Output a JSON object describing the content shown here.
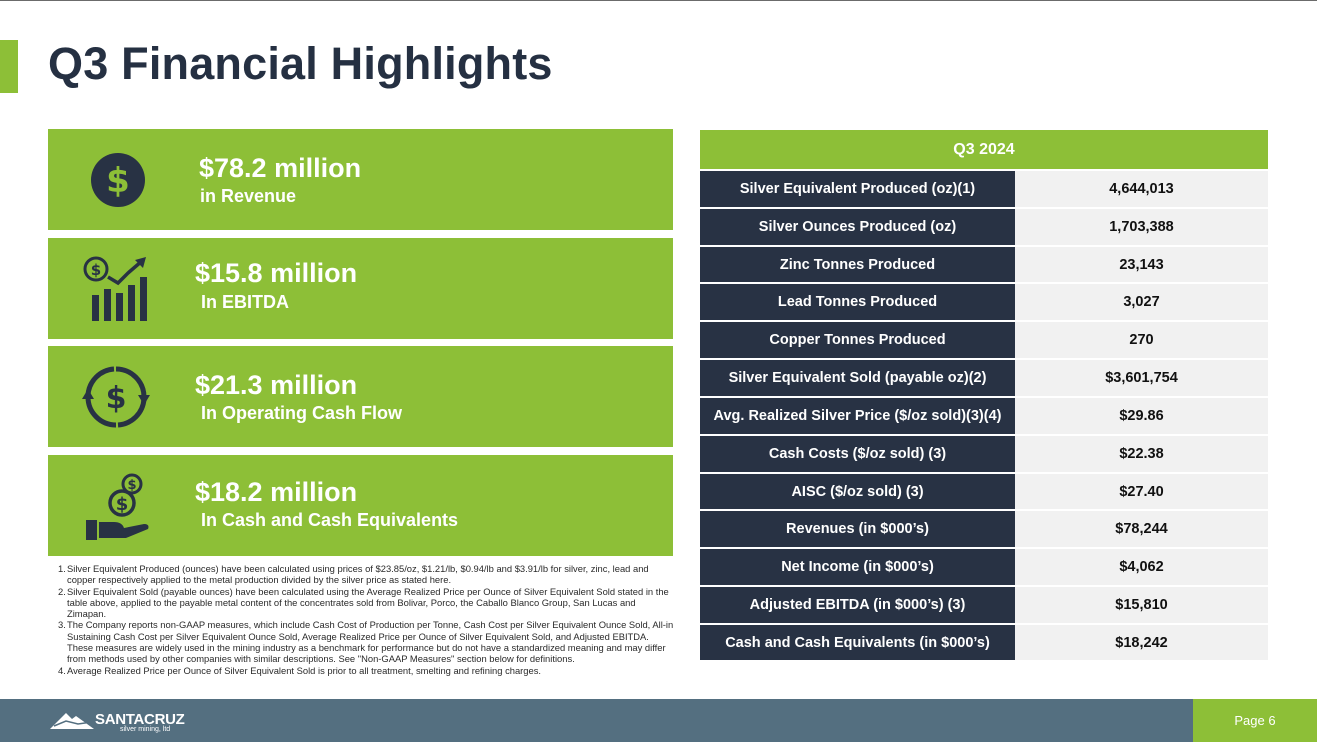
{
  "title": "Q3 Financial Highlights",
  "colors": {
    "accent_green": "#8dbf37",
    "navy": "#283244",
    "footer_blue": "#546f80"
  },
  "cards": [
    {
      "icon": "dollar-circle-icon",
      "amount": "$78.2 million",
      "caption": "in Revenue"
    },
    {
      "icon": "growth-chart-icon",
      "amount": "$15.8 million",
      "caption": "In EBITDA"
    },
    {
      "icon": "cash-flow-cycle-icon",
      "amount": "$21.3 million",
      "caption": "In Operating Cash Flow"
    },
    {
      "icon": "hand-money-icon",
      "amount": "$18.2 million",
      "caption": "In Cash and Cash Equivalents"
    }
  ],
  "notes": [
    {
      "num": "1.",
      "text": "Silver Equivalent Produced (ounces) have been calculated using prices of $23.85/oz, $1.21/lb, $0.94/lb and $3.91/lb for silver, zinc, lead and copper respectively applied to the metal production divided by the silver price as stated here."
    },
    {
      "num": "2.",
      "text": "Silver Equivalent Sold (payable ounces) have been calculated using the Average Realized Price per Ounce of Silver Equivalent Sold stated in the table above, applied to the payable metal content of the concentrates sold from Bolivar, Porco, the Caballo Blanco Group, San Lucas and Zimapan."
    },
    {
      "num": "3.",
      "text": "The Company reports non-GAAP measures, which include Cash Cost of Production per Tonne, Cash Cost per Silver Equivalent Ounce Sold, All-in Sustaining Cash Cost per Silver Equivalent Ounce Sold, Average Realized Price per Ounce of Silver Equivalent Sold, and Adjusted EBITDA. These measures are widely used in the mining industry as a benchmark for performance but do not have a standardized meaning and may differ from methods used by other companies with similar descriptions. See \"Non-GAAP Measures\" section below for definitions."
    },
    {
      "num": "4.",
      "text": "Average Realized Price per Ounce of Silver Equivalent Sold is prior to all treatment, smelting and refining charges."
    }
  ],
  "table": {
    "header": "Q3 2024",
    "rows": [
      {
        "label": "Silver Equivalent Produced (oz)(1)",
        "value": "4,644,013"
      },
      {
        "label": "Silver Ounces Produced (oz)",
        "value": "1,703,388"
      },
      {
        "label": "Zinc Tonnes Produced",
        "value": "23,143"
      },
      {
        "label": "Lead Tonnes Produced",
        "value": "3,027"
      },
      {
        "label": "Copper Tonnes Produced",
        "value": "270"
      },
      {
        "label": "Silver Equivalent Sold (payable oz)(2)",
        "value": "$3,601,754"
      },
      {
        "label": "Avg. Realized Silver Price ($/oz sold)(3)(4)",
        "value": "$29.86"
      },
      {
        "label": "Cash Costs ($/oz sold) (3)",
        "value": "$22.38"
      },
      {
        "label": "AISC ($/oz sold) (3)",
        "value": "$27.40"
      },
      {
        "label": "Revenues (in $000’s)",
        "value": "$78,244"
      },
      {
        "label": "Net Income (in $000’s)",
        "value": "$4,062"
      },
      {
        "label": "Adjusted EBITDA (in $000’s) (3)",
        "value": "$15,810"
      },
      {
        "label": "Cash and Cash Equivalents (in $000’s)",
        "value": "$18,242"
      }
    ]
  },
  "footer": {
    "logo_brand": "SANTACRUZ",
    "logo_tagline": "silver mining, ltd",
    "page_label": "Page 6"
  }
}
